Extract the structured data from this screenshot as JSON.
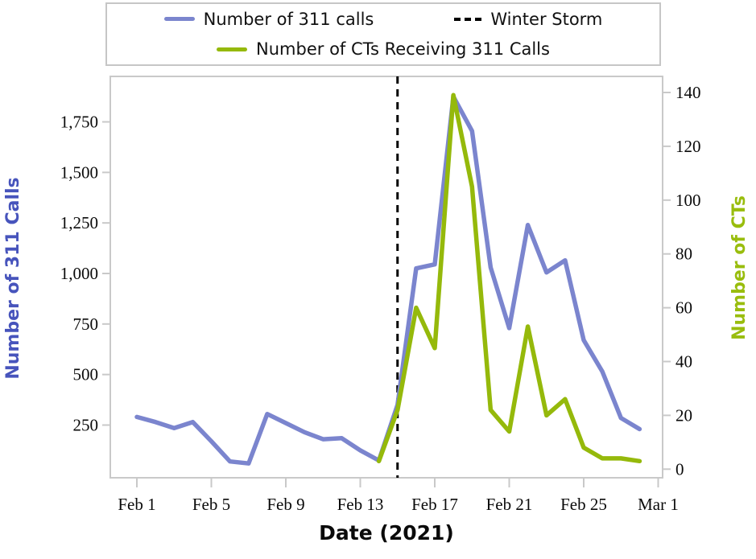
{
  "legend": {
    "items": [
      {
        "label": "Number of 311 calls",
        "color": "#7B85CE",
        "style": "solid"
      },
      {
        "label": "Winter Storm",
        "color": "#000000",
        "style": "dashed"
      },
      {
        "label": "Number of CTs Receiving 311 Calls",
        "color": "#95B90B",
        "style": "solid"
      }
    ]
  },
  "axes": {
    "left": {
      "title": "Number of 311 Calls",
      "color": "#4754BC",
      "tick_labels": [
        "250",
        "500",
        "750",
        "1,000",
        "1,250",
        "1,500",
        "1,750"
      ],
      "tick_values": [
        250,
        500,
        750,
        1000,
        1250,
        1500,
        1750
      ]
    },
    "right": {
      "title": "Number of CTs",
      "color": "#99BD0D",
      "tick_labels": [
        "0",
        "20",
        "40",
        "60",
        "80",
        "100",
        "120",
        "140"
      ],
      "tick_values": [
        0,
        20,
        40,
        60,
        80,
        100,
        120,
        140
      ]
    },
    "bottom": {
      "title": "Date (2021)",
      "tick_labels": [
        "Feb 1",
        "Feb 5",
        "Feb 9",
        "Feb 13",
        "Feb 17",
        "Feb 21",
        "Feb 25",
        "Mar 1"
      ],
      "tick_days": [
        1,
        5,
        9,
        13,
        17,
        21,
        25,
        29
      ]
    }
  },
  "chart_data": {
    "type": "line",
    "title": "",
    "xlabel": "Date (2021)",
    "ylabel_left": "Number of 311 Calls",
    "ylabel_right": "Number of CTs",
    "ylim_left": [
      0,
      1975
    ],
    "ylim_right": [
      0,
      146
    ],
    "x_range": [
      "Feb 1",
      "Mar 1"
    ],
    "grid": false,
    "legend_position": "top",
    "annotation": {
      "label": "Winter Storm",
      "type": "vertical-dashed-line",
      "x": "Feb 15"
    },
    "series": [
      {
        "name": "Number of 311 calls",
        "axis": "left",
        "color": "#7B85CE",
        "dates": [
          "Feb 1",
          "Feb 2",
          "Feb 3",
          "Feb 4",
          "Feb 5",
          "Feb 6",
          "Feb 7",
          "Feb 8",
          "Feb 9",
          "Feb 10",
          "Feb 11",
          "Feb 12",
          "Feb 13",
          "Feb 14",
          "Feb 15",
          "Feb 16",
          "Feb 17",
          "Feb 18",
          "Feb 19",
          "Feb 20",
          "Feb 21",
          "Feb 22",
          "Feb 23",
          "Feb 24",
          "Feb 25",
          "Feb 26",
          "Feb 27",
          "Feb 28"
        ],
        "values": [
          290,
          265,
          235,
          265,
          170,
          70,
          60,
          305,
          260,
          215,
          180,
          185,
          125,
          75,
          350,
          1025,
          1045,
          1875,
          1705,
          1030,
          730,
          1240,
          1005,
          1065,
          670,
          515,
          285,
          230
        ]
      },
      {
        "name": "Number of CTs Receiving 311 Calls",
        "axis": "right",
        "color": "#95B90B",
        "dates": [
          "Feb 14",
          "Feb 15",
          "Feb 16",
          "Feb 17",
          "Feb 18",
          "Feb 19",
          "Feb 20",
          "Feb 21",
          "Feb 22",
          "Feb 23",
          "Feb 24",
          "Feb 25",
          "Feb 26",
          "Feb 27",
          "Feb 28"
        ],
        "values": [
          3,
          22,
          60,
          45,
          139,
          105,
          22,
          14,
          53,
          20,
          26,
          8,
          4,
          4,
          3
        ]
      }
    ]
  }
}
